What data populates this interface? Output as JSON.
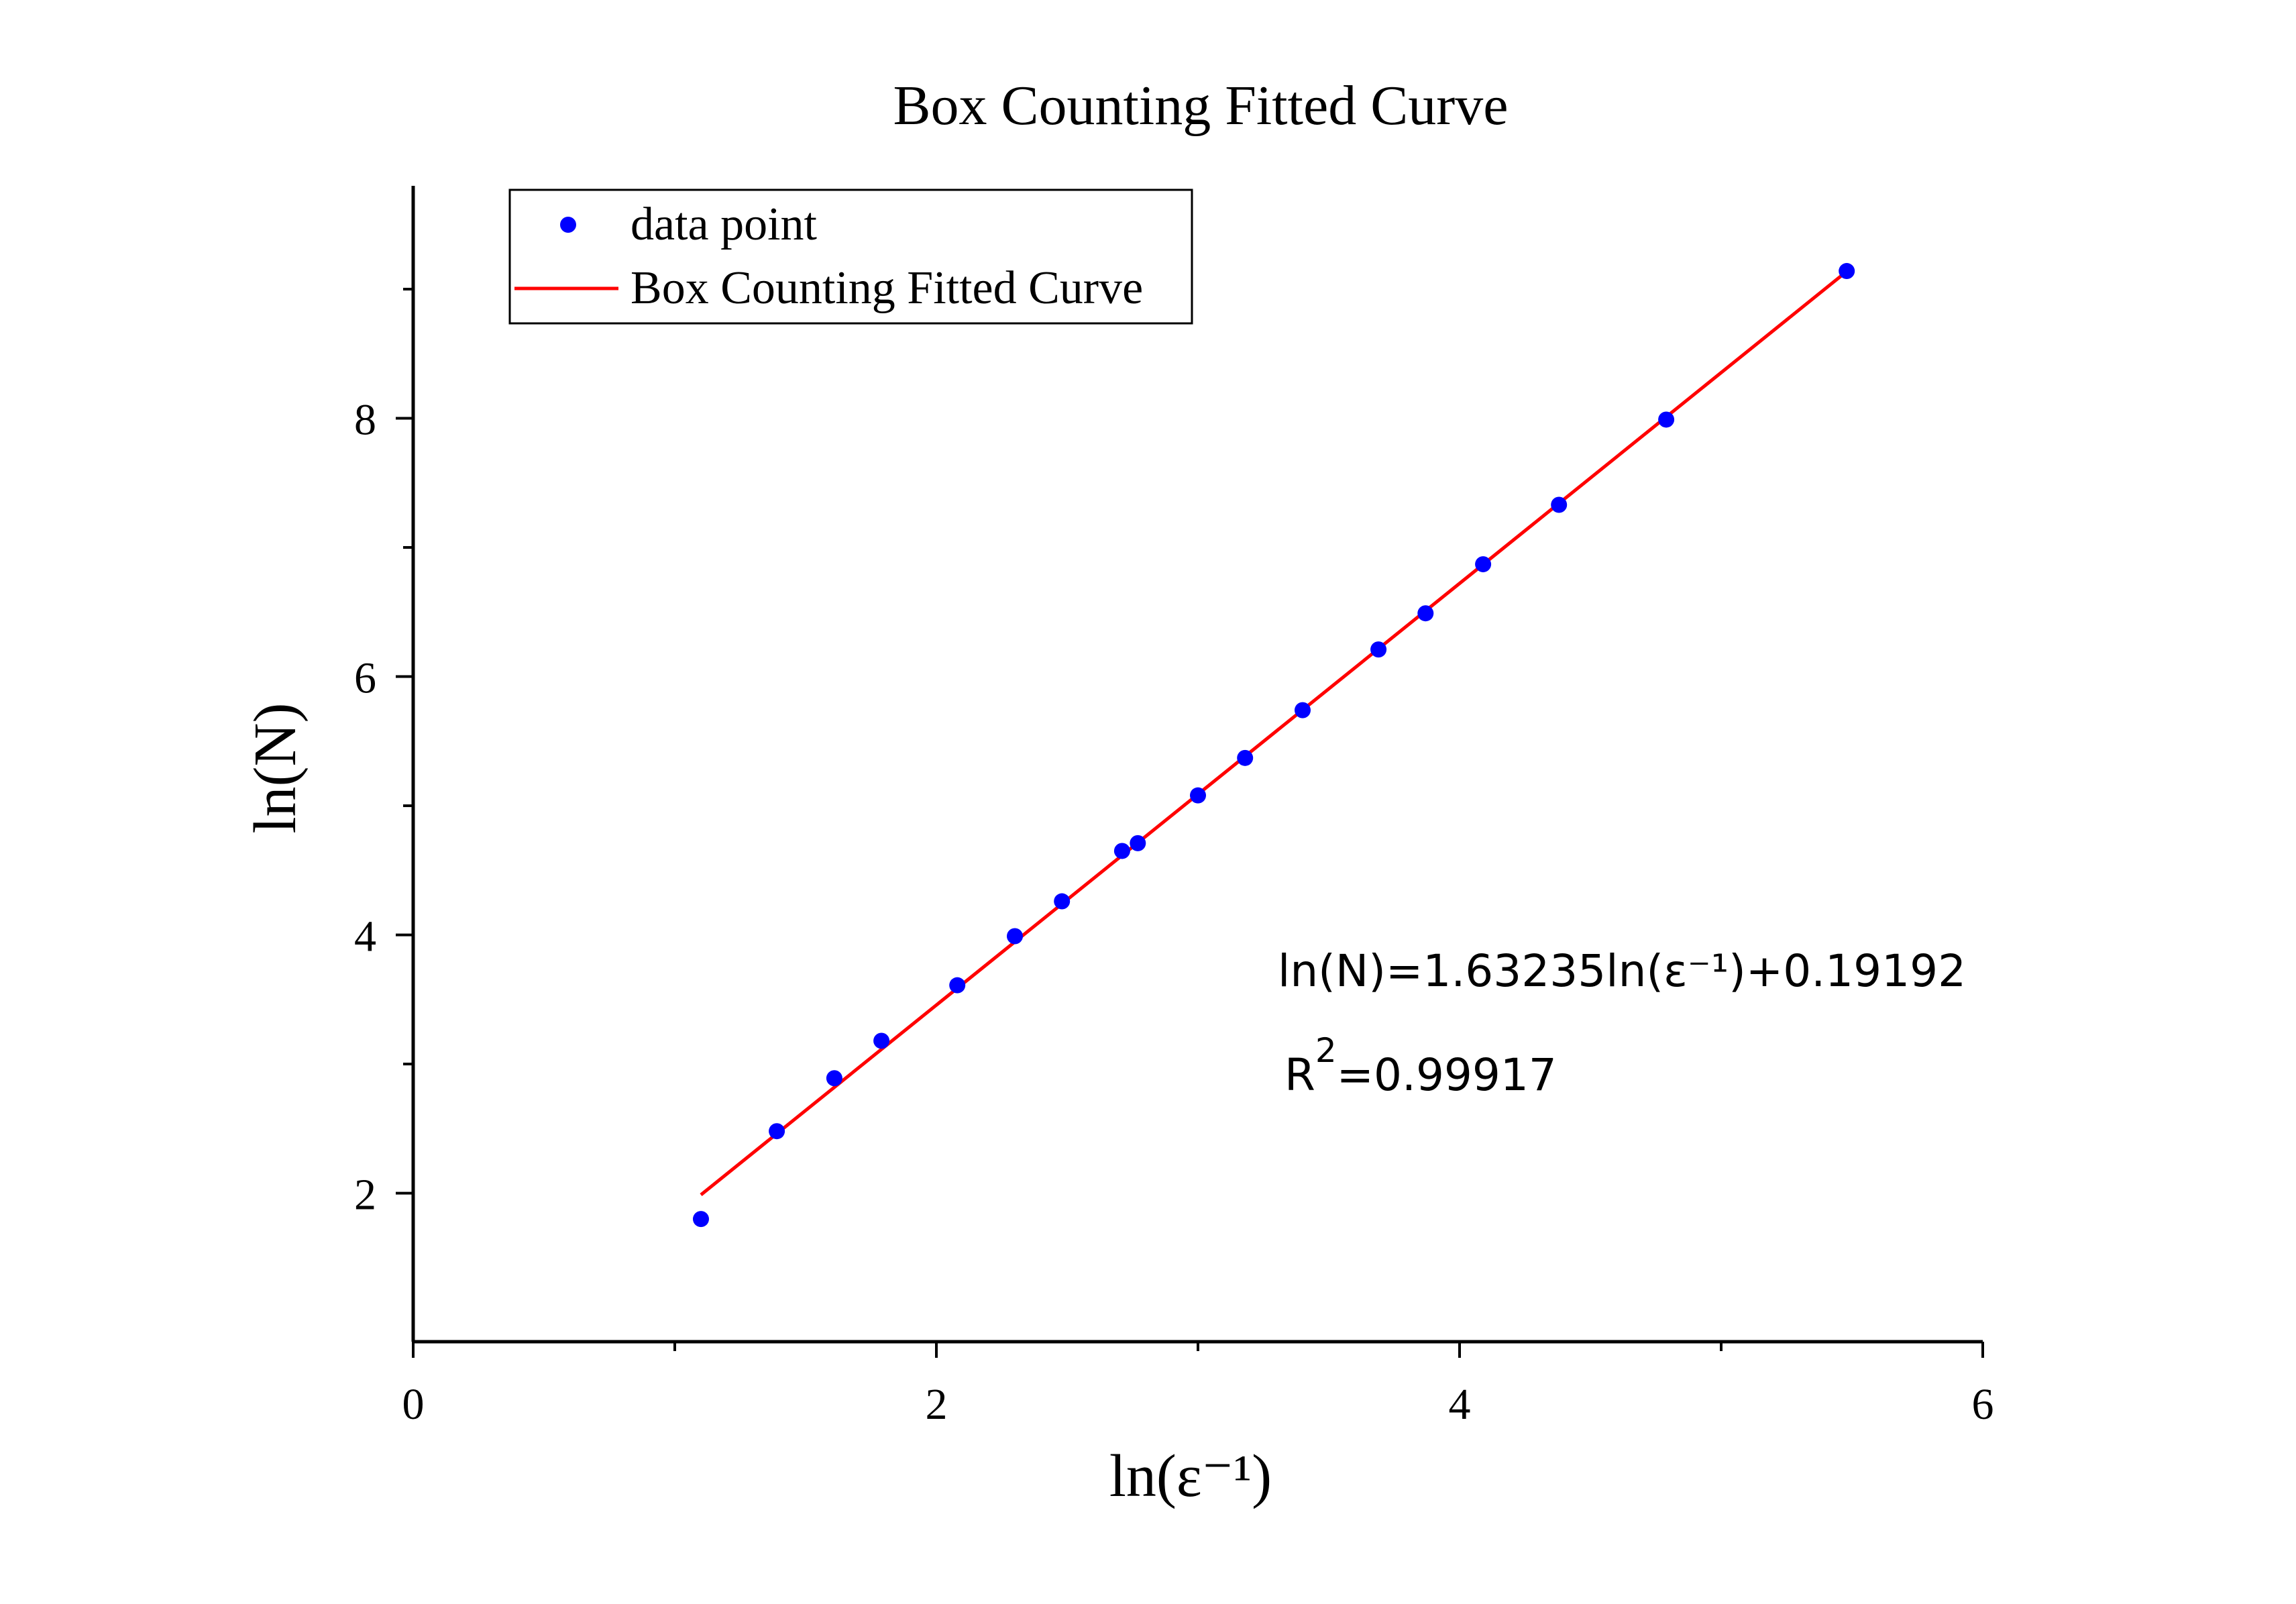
{
  "chart_data": {
    "type": "scatter",
    "title": "Box Counting Fitted Curve",
    "xlabel": "ln(ε⁻¹)",
    "ylabel": "ln(N)",
    "xlim": [
      0,
      6
    ],
    "ylim": [
      0.85,
      9.8
    ],
    "xticks": [
      0,
      2,
      4,
      6
    ],
    "yticks": [
      2,
      4,
      6,
      8
    ],
    "xtick_labels": [
      "0",
      "2",
      "4",
      "6"
    ],
    "ytick_labels": [
      "2",
      "4",
      "6",
      "8"
    ],
    "x_minor_ticks": [
      1,
      3,
      5
    ],
    "y_minor_ticks": [
      3,
      5,
      7,
      9
    ],
    "grid": false,
    "legend_position": "top-left",
    "series": [
      {
        "name": "data point",
        "kind": "scatter",
        "color": "#0000ff",
        "x": [
          1.1,
          1.39,
          1.61,
          1.79,
          2.08,
          2.3,
          2.48,
          2.71,
          2.77,
          3.0,
          3.18,
          3.4,
          3.69,
          3.87,
          4.09,
          4.38,
          4.79,
          5.48
        ],
        "y": [
          1.8,
          2.48,
          2.89,
          3.18,
          3.61,
          3.99,
          4.26,
          4.65,
          4.71,
          5.08,
          5.37,
          5.74,
          6.21,
          6.49,
          6.87,
          7.33,
          7.99,
          9.14
        ]
      },
      {
        "name": "Box Counting Fitted Curve",
        "kind": "line",
        "color": "#ff0000",
        "slope": 1.63235,
        "intercept": 0.19192,
        "x_range": [
          1.1,
          5.48
        ]
      }
    ],
    "annotations": {
      "equation": "ln(N)=1.63235ln(ε⁻¹)+0.19192",
      "r2_prefix": "R",
      "r2_exp": "2",
      "r2_value": "=0.99917"
    }
  }
}
